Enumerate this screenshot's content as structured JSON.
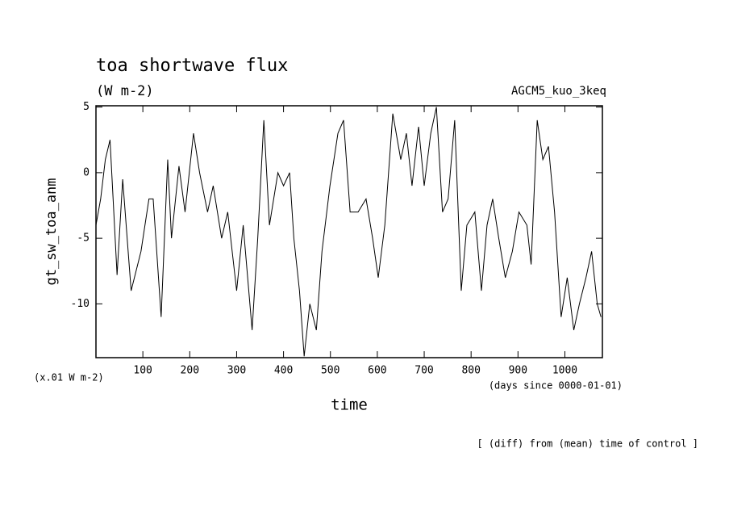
{
  "chart_data": {
    "type": "line",
    "title": "toa shortwave flux",
    "subtitle": "(W m-2)",
    "model_label": "AGCM5_kuo_3keq",
    "ylabel": "gt_sw_toa_anm",
    "xlabel": "time",
    "scale_note": "(x.01 W m-2)",
    "xunits": "(days since 0000-01-01)",
    "footnote": "[ (diff) from (mean) time of control ]",
    "x": [
      0,
      10,
      20,
      30,
      45,
      57,
      75,
      96,
      113,
      122,
      139,
      153,
      161,
      177,
      190,
      208,
      221,
      238,
      250,
      268,
      281,
      300,
      314,
      333,
      345,
      358,
      370,
      388,
      400,
      413,
      422,
      434,
      444,
      456,
      470,
      482,
      499,
      516,
      528,
      542,
      559,
      576,
      590,
      602,
      616,
      633,
      650,
      662,
      674,
      688,
      700,
      714,
      726,
      739,
      751,
      765,
      779,
      791,
      808,
      822,
      834,
      846,
      859,
      873,
      888,
      902,
      919,
      928,
      941,
      953,
      965,
      978,
      992,
      1005,
      1019,
      1031,
      1045,
      1057,
      1069,
      1077
    ],
    "series": [
      {
        "name": "gt_sw_toa_anm",
        "color": "#000000",
        "values": [
          -4,
          -2,
          1,
          2.5,
          -7.8,
          -0.5,
          -9,
          -6,
          -2,
          -2,
          -11,
          1,
          -5,
          0.5,
          -3,
          3,
          0,
          -3,
          -1,
          -5,
          -3,
          -9,
          -4,
          -12,
          -5,
          4,
          -4,
          0,
          -1,
          0,
          -5,
          -9,
          -14,
          -10,
          -12,
          -6,
          -1,
          3,
          4,
          -3,
          -3,
          -2,
          -5,
          -8,
          -4,
          4.5,
          1,
          3,
          -1,
          3.5,
          -1,
          3,
          5,
          -3,
          -2,
          4,
          -9,
          -4,
          -3,
          -9,
          -4,
          -2,
          -5,
          -8,
          -6,
          -3,
          -4,
          -7,
          4,
          1,
          2,
          -3,
          -11,
          -8,
          -12,
          -10,
          -8,
          -6,
          -10,
          -11
        ]
      }
    ],
    "xlim": [
      0,
      1080
    ],
    "xticks": [
      100,
      200,
      300,
      400,
      500,
      600,
      700,
      800,
      900,
      1000
    ],
    "ylim": [
      -14.1,
      5.1
    ],
    "yticks": [
      -10,
      -5,
      0,
      5
    ]
  }
}
